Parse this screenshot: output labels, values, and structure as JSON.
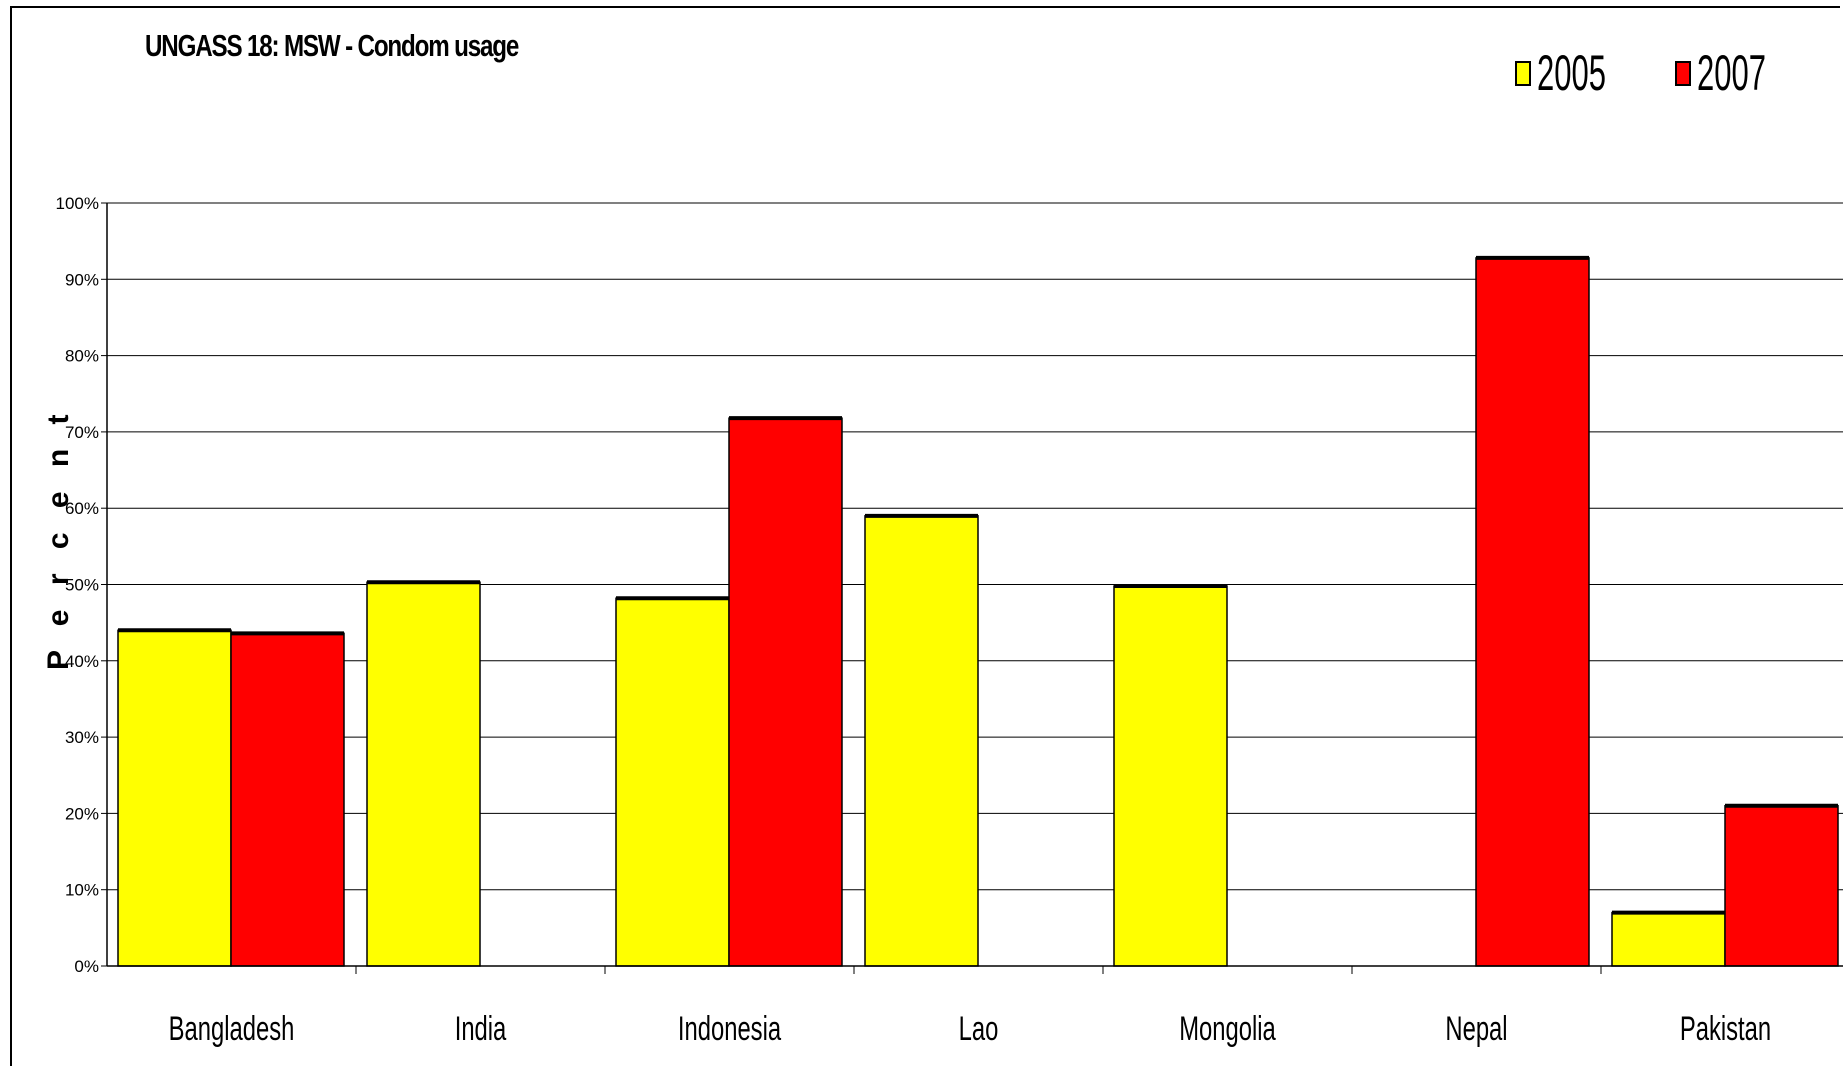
{
  "chart_data": {
    "type": "bar",
    "title": "UNGASS 18: MSW - Condom usage",
    "ylabel": "P e r c e n t",
    "xlabel": "",
    "categories": [
      "Bangladesh",
      "India",
      "Indonesia",
      "Lao",
      "Mongolia",
      "Nepal",
      "Pakistan"
    ],
    "series": [
      {
        "name": "2005",
        "color": "#ffff00",
        "values": [
          44,
          50.3,
          48.2,
          59,
          49.8,
          null,
          7
        ]
      },
      {
        "name": "2007",
        "color": "#ff0000",
        "values": [
          43.6,
          null,
          71.8,
          null,
          null,
          92.8,
          21
        ]
      }
    ],
    "ylim": [
      0,
      100
    ],
    "yticks": [
      "0%",
      "10%",
      "20%",
      "30%",
      "40%",
      "50%",
      "60%",
      "70%",
      "80%",
      "90%",
      "100%"
    ],
    "grid": true,
    "legend_position": "top-right"
  }
}
